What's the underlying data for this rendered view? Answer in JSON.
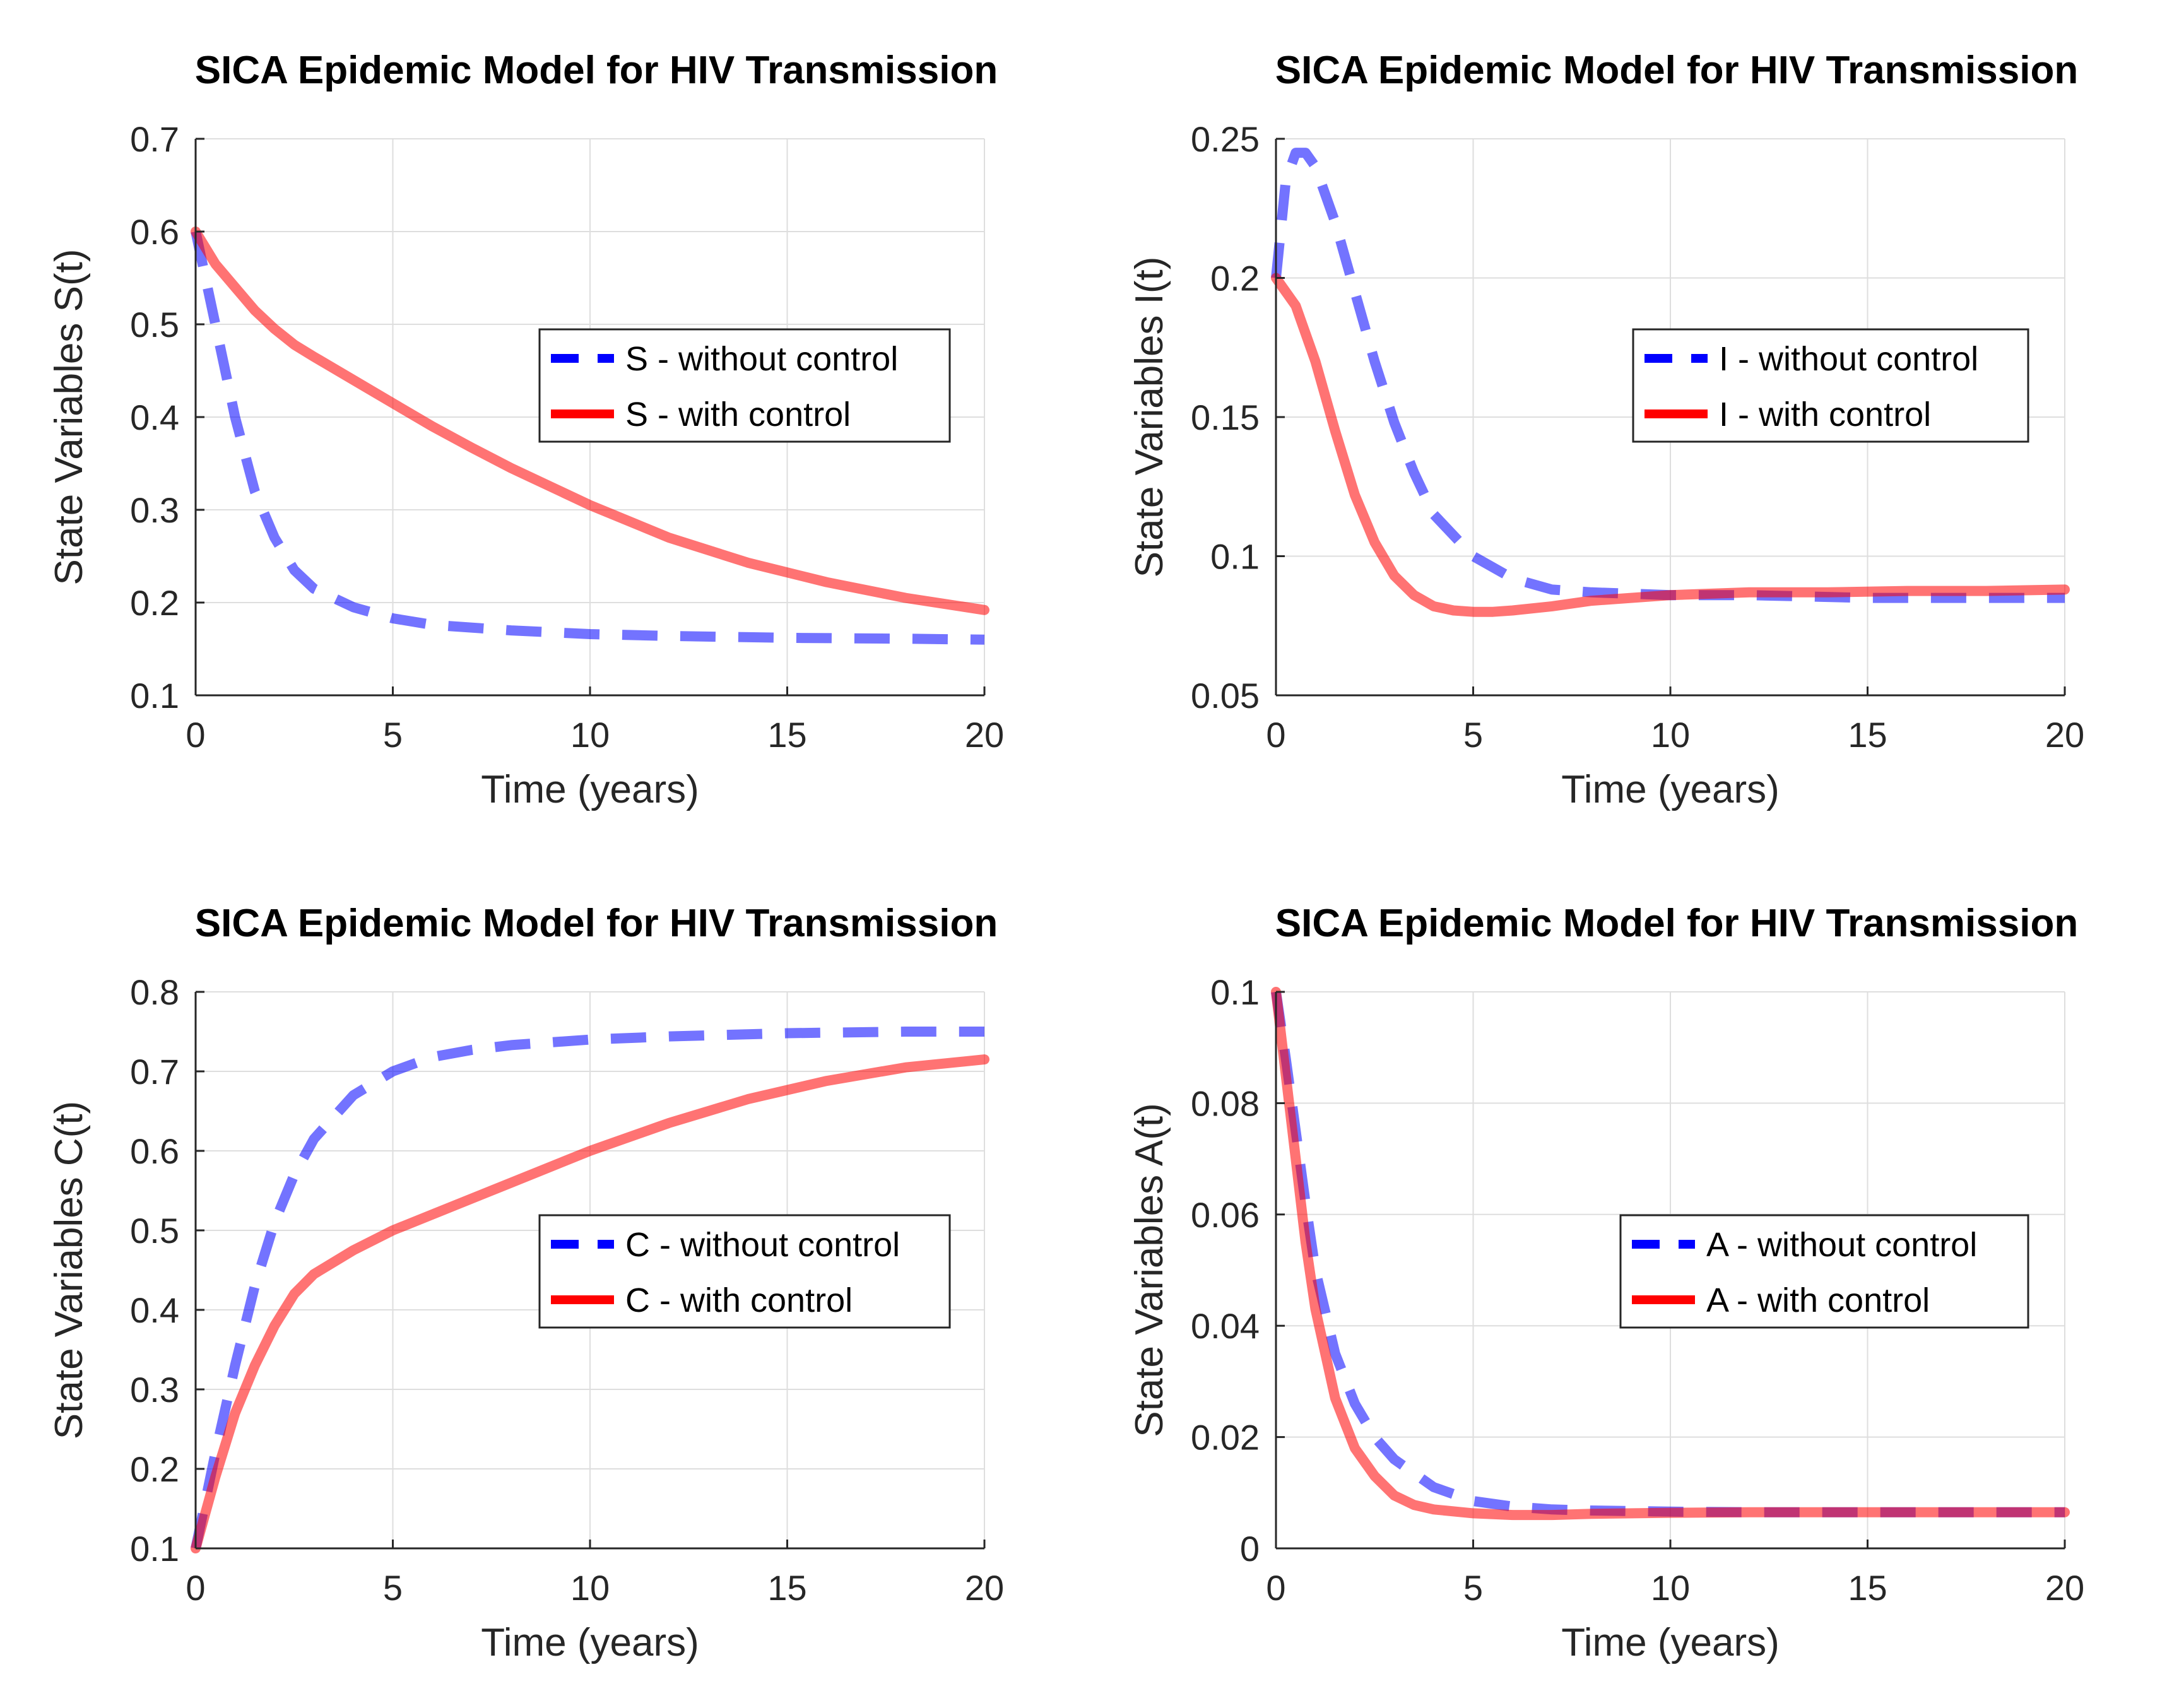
{
  "chart_data": [
    {
      "type": "line",
      "title": "SICA Epidemic Model for HIV Transmission",
      "xlabel": "Time (years)",
      "ylabel": "State Variables S(t)",
      "xlim": [
        0,
        20
      ],
      "ylim": [
        0.1,
        0.7
      ],
      "xticks": [
        0,
        5,
        10,
        15,
        20
      ],
      "xtick_labels": [
        "0",
        "5",
        "10",
        "15",
        "20"
      ],
      "yticks": [
        0.1,
        0.2,
        0.3,
        0.4,
        0.5,
        0.6,
        0.7
      ],
      "ytick_labels": [
        "0.1",
        "0.2",
        "0.3",
        "0.4",
        "0.5",
        "0.6",
        "0.7"
      ],
      "grid": true,
      "legend_position": "center-right",
      "series": [
        {
          "name": "S - without control",
          "color": "#0000ff",
          "style": "dashed",
          "x": [
            0,
            0.5,
            1,
            1.5,
            2,
            2.5,
            3,
            4,
            5,
            6,
            8,
            10,
            12,
            15,
            18,
            20
          ],
          "y": [
            0.6,
            0.5,
            0.4,
            0.32,
            0.27,
            0.235,
            0.215,
            0.195,
            0.183,
            0.176,
            0.17,
            0.166,
            0.164,
            0.162,
            0.161,
            0.16
          ]
        },
        {
          "name": "S - with control",
          "color": "#ff0000",
          "style": "solid",
          "x": [
            0,
            0.5,
            1,
            1.5,
            2,
            2.5,
            3,
            4,
            5,
            6,
            7,
            8,
            10,
            12,
            14,
            16,
            18,
            20
          ],
          "y": [
            0.6,
            0.565,
            0.54,
            0.515,
            0.495,
            0.478,
            0.465,
            0.44,
            0.415,
            0.39,
            0.367,
            0.345,
            0.305,
            0.27,
            0.243,
            0.222,
            0.205,
            0.192
          ]
        }
      ]
    },
    {
      "type": "line",
      "title": "SICA Epidemic Model for HIV Transmission",
      "xlabel": "Time (years)",
      "ylabel": "State Variables I(t)",
      "xlim": [
        0,
        20
      ],
      "ylim": [
        0.05,
        0.25
      ],
      "xticks": [
        0,
        5,
        10,
        15,
        20
      ],
      "xtick_labels": [
        "0",
        "5",
        "10",
        "15",
        "20"
      ],
      "yticks": [
        0.05,
        0.1,
        0.15,
        0.2,
        0.25
      ],
      "ytick_labels": [
        "0.05",
        "0.1",
        "0.15",
        "0.2",
        "0.25"
      ],
      "grid": true,
      "legend_position": "center-right",
      "series": [
        {
          "name": "I - without control",
          "color": "#0000ff",
          "style": "dashed",
          "x": [
            0,
            0.25,
            0.5,
            0.75,
            1,
            1.5,
            2,
            2.5,
            3,
            3.5,
            4,
            5,
            6,
            7,
            8,
            10,
            12,
            15,
            18,
            20
          ],
          "y": [
            0.2,
            0.235,
            0.245,
            0.245,
            0.24,
            0.22,
            0.195,
            0.17,
            0.148,
            0.13,
            0.115,
            0.1,
            0.092,
            0.088,
            0.087,
            0.086,
            0.086,
            0.085,
            0.085,
            0.085
          ]
        },
        {
          "name": "I - with control",
          "color": "#ff0000",
          "style": "solid",
          "x": [
            0,
            0.5,
            1,
            1.5,
            2,
            2.5,
            3,
            3.5,
            4,
            4.5,
            5,
            5.5,
            6,
            7,
            8,
            10,
            12,
            14,
            16,
            18,
            20
          ],
          "y": [
            0.2,
            0.19,
            0.17,
            0.145,
            0.122,
            0.105,
            0.093,
            0.086,
            0.082,
            0.0805,
            0.08,
            0.08,
            0.0805,
            0.082,
            0.084,
            0.086,
            0.087,
            0.087,
            0.0875,
            0.0875,
            0.088
          ]
        }
      ]
    },
    {
      "type": "line",
      "title": "SICA Epidemic Model for HIV Transmission",
      "xlabel": "Time (years)",
      "ylabel": "State Variables C(t)",
      "xlim": [
        0,
        20
      ],
      "ylim": [
        0.1,
        0.8
      ],
      "xticks": [
        0,
        5,
        10,
        15,
        20
      ],
      "xtick_labels": [
        "0",
        "5",
        "10",
        "15",
        "20"
      ],
      "yticks": [
        0.1,
        0.2,
        0.3,
        0.4,
        0.5,
        0.6,
        0.7,
        0.8
      ],
      "ytick_labels": [
        "0.1",
        "0.2",
        "0.3",
        "0.4",
        "0.5",
        "0.6",
        "0.7",
        "0.8"
      ],
      "grid": true,
      "legend_position": "center-right",
      "series": [
        {
          "name": "C - without control",
          "color": "#0000ff",
          "style": "dashed",
          "x": [
            0,
            0.5,
            1,
            1.5,
            2,
            2.5,
            3,
            4,
            5,
            6,
            7,
            8,
            10,
            12,
            15,
            18,
            20
          ],
          "y": [
            0.1,
            0.22,
            0.33,
            0.43,
            0.51,
            0.57,
            0.615,
            0.67,
            0.7,
            0.718,
            0.727,
            0.733,
            0.74,
            0.744,
            0.748,
            0.75,
            0.75
          ]
        },
        {
          "name": "C - with control",
          "color": "#ff0000",
          "style": "solid",
          "x": [
            0,
            0.5,
            1,
            1.5,
            2,
            2.5,
            3,
            4,
            5,
            6,
            8,
            10,
            12,
            14,
            16,
            18,
            20
          ],
          "y": [
            0.1,
            0.19,
            0.27,
            0.33,
            0.38,
            0.42,
            0.445,
            0.475,
            0.5,
            0.52,
            0.56,
            0.6,
            0.635,
            0.665,
            0.688,
            0.705,
            0.715
          ]
        }
      ]
    },
    {
      "type": "line",
      "title": "SICA Epidemic Model for HIV Transmission",
      "xlabel": "Time (years)",
      "ylabel": "State Variables A(t)",
      "xlim": [
        0,
        20
      ],
      "ylim": [
        0,
        0.1
      ],
      "xticks": [
        0,
        5,
        10,
        15,
        20
      ],
      "xtick_labels": [
        "0",
        "5",
        "10",
        "15",
        "20"
      ],
      "yticks": [
        0,
        0.02,
        0.04,
        0.06,
        0.08,
        0.1
      ],
      "ytick_labels": [
        "0",
        "0.02",
        "0.04",
        "0.06",
        "0.08",
        "0.1"
      ],
      "grid": true,
      "legend_position": "center-right",
      "series": [
        {
          "name": "A - without control",
          "color": "#0000ff",
          "style": "dashed",
          "x": [
            0,
            0.25,
            0.5,
            0.75,
            1,
            1.5,
            2,
            2.5,
            3,
            4,
            5,
            6,
            7,
            8,
            10,
            12,
            15,
            18,
            20
          ],
          "y": [
            0.1,
            0.088,
            0.075,
            0.062,
            0.05,
            0.035,
            0.026,
            0.02,
            0.016,
            0.011,
            0.0085,
            0.0075,
            0.007,
            0.0068,
            0.0066,
            0.0065,
            0.0065,
            0.0065,
            0.0065
          ]
        },
        {
          "name": "A - with control",
          "color": "#ff0000",
          "style": "solid",
          "x": [
            0,
            0.25,
            0.5,
            0.75,
            1,
            1.5,
            2,
            2.5,
            3,
            3.5,
            4,
            5,
            6,
            7,
            8,
            10,
            12,
            15,
            18,
            20
          ],
          "y": [
            0.1,
            0.085,
            0.07,
            0.055,
            0.043,
            0.027,
            0.018,
            0.013,
            0.0095,
            0.0078,
            0.007,
            0.0063,
            0.006,
            0.006,
            0.0062,
            0.0064,
            0.0065,
            0.0065,
            0.0065,
            0.0065
          ]
        }
      ]
    }
  ]
}
